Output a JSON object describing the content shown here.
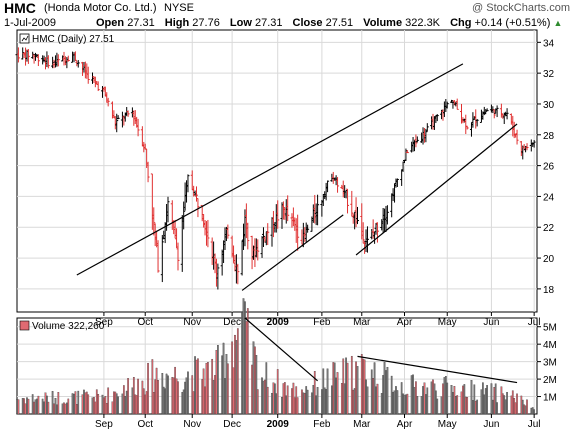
{
  "header": {
    "symbol": "HMC",
    "company": "(Honda Motor Co. Ltd.)",
    "exchange": "NYSE",
    "watermark": "@ StockCharts.com",
    "date": "1-Jul-2009",
    "open_label": "Open",
    "open": "27.31",
    "high_label": "High",
    "high": "27.76",
    "low_label": "Low",
    "low": "27.31",
    "close_label": "Close",
    "close": "27.51",
    "volume_label": "Volume",
    "volume": "322.3K",
    "chg_label": "Chg",
    "chg": "+0.14 (+0.51%)"
  },
  "colors": {
    "up": "#000000",
    "down": "#e03030",
    "vol_up": "#7a7a7a",
    "vol_down": "#e06a72",
    "grid": "#d9d9d9",
    "trendline": "#000000"
  },
  "chart_data": [
    {
      "type": "ohlc",
      "legend": "HMC (Daily) 27.51",
      "ylim": [
        16.5,
        34.8
      ],
      "y_ticks": [
        "18",
        "20",
        "22",
        "24",
        "26",
        "28",
        "30",
        "32",
        "34"
      ],
      "x_ticks": [
        {
          "date": "2008-09-02",
          "label": "Sep",
          "year": false
        },
        {
          "date": "2008-10-01",
          "label": "Oct",
          "year": false
        },
        {
          "date": "2008-11-03",
          "label": "Nov",
          "year": false
        },
        {
          "date": "2008-12-01",
          "label": "Dec",
          "year": false
        },
        {
          "date": "2009-01-02",
          "label": "2009",
          "year": true
        },
        {
          "date": "2009-02-02",
          "label": "Feb",
          "year": false
        },
        {
          "date": "2009-03-02",
          "label": "Mar",
          "year": false
        },
        {
          "date": "2009-04-01",
          "label": "Apr",
          "year": false
        },
        {
          "date": "2009-05-01",
          "label": "May",
          "year": false
        },
        {
          "date": "2009-06-01",
          "label": "Jun",
          "year": false
        },
        {
          "date": "2009-07-01",
          "label": "Jul",
          "year": false
        }
      ],
      "key_points": [
        {
          "date": "2008-07-14",
          "price": 33.2
        },
        {
          "date": "2008-07-28",
          "price": 32.6
        },
        {
          "date": "2008-08-11",
          "price": 33.2
        },
        {
          "date": "2008-08-22",
          "price": 31.8
        },
        {
          "date": "2008-09-02",
          "price": 30.8
        },
        {
          "date": "2008-09-10",
          "price": 28.8
        },
        {
          "date": "2008-09-22",
          "price": 29.5
        },
        {
          "date": "2008-10-01",
          "price": 27.0
        },
        {
          "date": "2008-10-10",
          "price": 19.6
        },
        {
          "date": "2008-10-17",
          "price": 23.5
        },
        {
          "date": "2008-10-24",
          "price": 20.3
        },
        {
          "date": "2008-10-31",
          "price": 25.2
        },
        {
          "date": "2008-11-10",
          "price": 23.0
        },
        {
          "date": "2008-11-20",
          "price": 19.2
        },
        {
          "date": "2008-11-28",
          "price": 21.8
        },
        {
          "date": "2008-12-05",
          "price": 19.0
        },
        {
          "date": "2008-12-10",
          "price": 22.5
        },
        {
          "date": "2008-12-15",
          "price": 20.2
        },
        {
          "date": "2008-12-24",
          "price": 21.5
        },
        {
          "date": "2009-01-06",
          "price": 23.2
        },
        {
          "date": "2009-01-20",
          "price": 21.2
        },
        {
          "date": "2009-02-09",
          "price": 25.4
        },
        {
          "date": "2009-02-20",
          "price": 23.8
        },
        {
          "date": "2009-03-06",
          "price": 21.0
        },
        {
          "date": "2009-03-20",
          "price": 23.2
        },
        {
          "date": "2009-04-03",
          "price": 27.0
        },
        {
          "date": "2009-04-17",
          "price": 28.3
        },
        {
          "date": "2009-05-04",
          "price": 30.3
        },
        {
          "date": "2009-05-15",
          "price": 28.6
        },
        {
          "date": "2009-05-29",
          "price": 29.6
        },
        {
          "date": "2009-06-12",
          "price": 29.4
        },
        {
          "date": "2009-06-22",
          "price": 27.0
        },
        {
          "date": "2009-07-01",
          "price": 27.51
        }
      ],
      "trendlines": [
        {
          "from": {
            "date": "2008-08-14",
            "price": 18.9
          },
          "to": {
            "date": "2009-05-12",
            "price": 32.6
          }
        },
        {
          "from": {
            "date": "2008-12-08",
            "price": 17.9
          },
          "to": {
            "date": "2009-02-17",
            "price": 22.8
          }
        },
        {
          "from": {
            "date": "2009-02-26",
            "price": 20.2
          },
          "to": {
            "date": "2009-06-19",
            "price": 28.7
          }
        }
      ]
    },
    {
      "type": "bar",
      "legend": "Volume 322,260",
      "ylim": [
        0,
        5500000
      ],
      "y_ticks": [
        "1M",
        "2M",
        "3M",
        "4M",
        "5M"
      ],
      "key_points": [
        {
          "date": "2008-07-14",
          "volume": 900000
        },
        {
          "date": "2008-09-02",
          "volume": 1000000
        },
        {
          "date": "2008-10-10",
          "volume": 2300000
        },
        {
          "date": "2008-10-27",
          "volume": 2200000
        },
        {
          "date": "2008-11-20",
          "volume": 2600000
        },
        {
          "date": "2008-12-08",
          "volume": 5200000
        },
        {
          "date": "2008-12-20",
          "volume": 2300000
        },
        {
          "date": "2009-01-15",
          "volume": 1300000
        },
        {
          "date": "2009-02-06",
          "volume": 2000000
        },
        {
          "date": "2009-03-02",
          "volume": 2600000
        },
        {
          "date": "2009-04-01",
          "volume": 1600000
        },
        {
          "date": "2009-05-05",
          "volume": 1500000
        },
        {
          "date": "2009-06-15",
          "volume": 1100000
        },
        {
          "date": "2009-07-01",
          "volume": 320000
        }
      ],
      "trendlines": [
        {
          "from": {
            "date": "2008-12-10",
            "volume": 5500000
          },
          "to": {
            "date": "2009-01-30",
            "volume": 1900000
          }
        },
        {
          "from": {
            "date": "2009-02-27",
            "volume": 3300000
          },
          "to": {
            "date": "2009-06-19",
            "volume": 1800000
          }
        }
      ]
    }
  ]
}
